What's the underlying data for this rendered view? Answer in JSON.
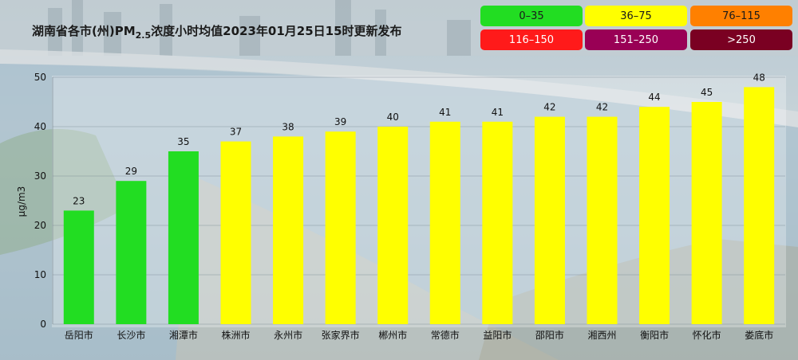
{
  "chart_data": {
    "type": "bar",
    "title_prefix": "湖南省各市(州)PM",
    "title_sub": "2.5",
    "title_suffix": "浓度小时均值2023年01月25日15时更新发布",
    "ylabel": "μg/m3",
    "ylim": [
      0,
      50
    ],
    "yticks": [
      0,
      10,
      20,
      30,
      40,
      50
    ],
    "categories": [
      "岳阳市",
      "长沙市",
      "湘潭市",
      "株洲市",
      "永州市",
      "张家界市",
      "郴州市",
      "常德市",
      "益阳市",
      "邵阳市",
      "湘西州",
      "衡阳市",
      "怀化市",
      "娄底市"
    ],
    "values": [
      23,
      29,
      35,
      37,
      38,
      39,
      40,
      41,
      41,
      42,
      42,
      44,
      45,
      48
    ],
    "grid": true,
    "legend": {
      "placement": "top-right",
      "ranges": [
        {
          "label": "0–35",
          "min": 0,
          "max": 35,
          "color": "#22dd22",
          "text_color": "#1a1a1a"
        },
        {
          "label": "36–75",
          "min": 36,
          "max": 75,
          "color": "#ffff00",
          "text_color": "#1a1a1a"
        },
        {
          "label": "76–115",
          "min": 76,
          "max": 115,
          "color": "#ff8000",
          "text_color": "#1a1a1a"
        },
        {
          "label": "116–150",
          "min": 116,
          "max": 150,
          "color": "#ff1a1a",
          "text_color": "#ffffff"
        },
        {
          "label": "151–250",
          "min": 151,
          "max": 250,
          "color": "#990055",
          "text_color": "#ffffff"
        },
        {
          "label": ">250",
          "min": 251,
          "max": 100000,
          "color": "#7a0022",
          "text_color": "#ffffff"
        }
      ]
    }
  }
}
